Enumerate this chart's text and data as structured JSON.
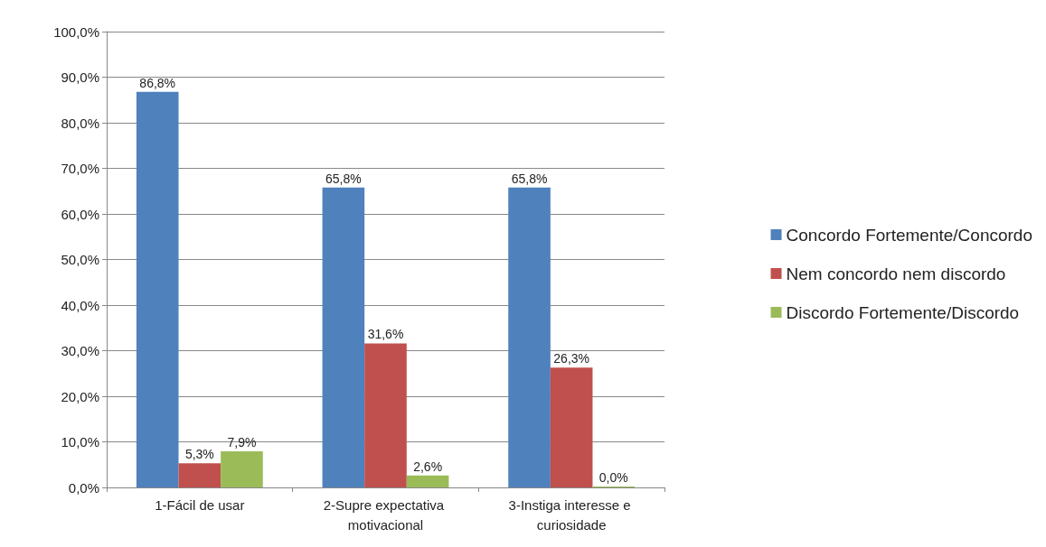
{
  "chart_data": {
    "type": "bar",
    "categories": [
      "1-Fácil de usar",
      "2-Supre expectativa motivacional",
      "3-Instiga interesse e curiosidade"
    ],
    "series": [
      {
        "name": "Concordo Fortemente/Concordo",
        "color": "#4f81bd",
        "values": [
          86.8,
          65.8,
          65.8
        ],
        "value_labels": [
          "86,8%",
          "65,8%",
          "65,8%"
        ]
      },
      {
        "name": "Nem concordo nem discordo",
        "color": "#c0504d",
        "values": [
          5.3,
          31.6,
          26.3
        ],
        "value_labels": [
          "5,3%",
          "31,6%",
          "26,3%"
        ]
      },
      {
        "name": "Discordo Fortemente/Discordo",
        "color": "#9bbb59",
        "values": [
          7.9,
          2.6,
          0.0
        ],
        "value_labels": [
          "7,9%",
          "2,6%",
          "0,0%"
        ]
      }
    ],
    "ylim": [
      0,
      100
    ],
    "yticks": [
      {
        "value": 0,
        "label": "0,0%"
      },
      {
        "value": 10,
        "label": "10,0%"
      },
      {
        "value": 20,
        "label": "20,0%"
      },
      {
        "value": 30,
        "label": "30,0%"
      },
      {
        "value": 40,
        "label": "40,0%"
      },
      {
        "value": 50,
        "label": "50,0%"
      },
      {
        "value": 60,
        "label": "60,0%"
      },
      {
        "value": 70,
        "label": "70,0%"
      },
      {
        "value": 80,
        "label": "80,0%"
      },
      {
        "value": 90,
        "label": "90,0%"
      },
      {
        "value": 100,
        "label": "100,0%"
      }
    ],
    "grid": "y",
    "legend": "right"
  }
}
